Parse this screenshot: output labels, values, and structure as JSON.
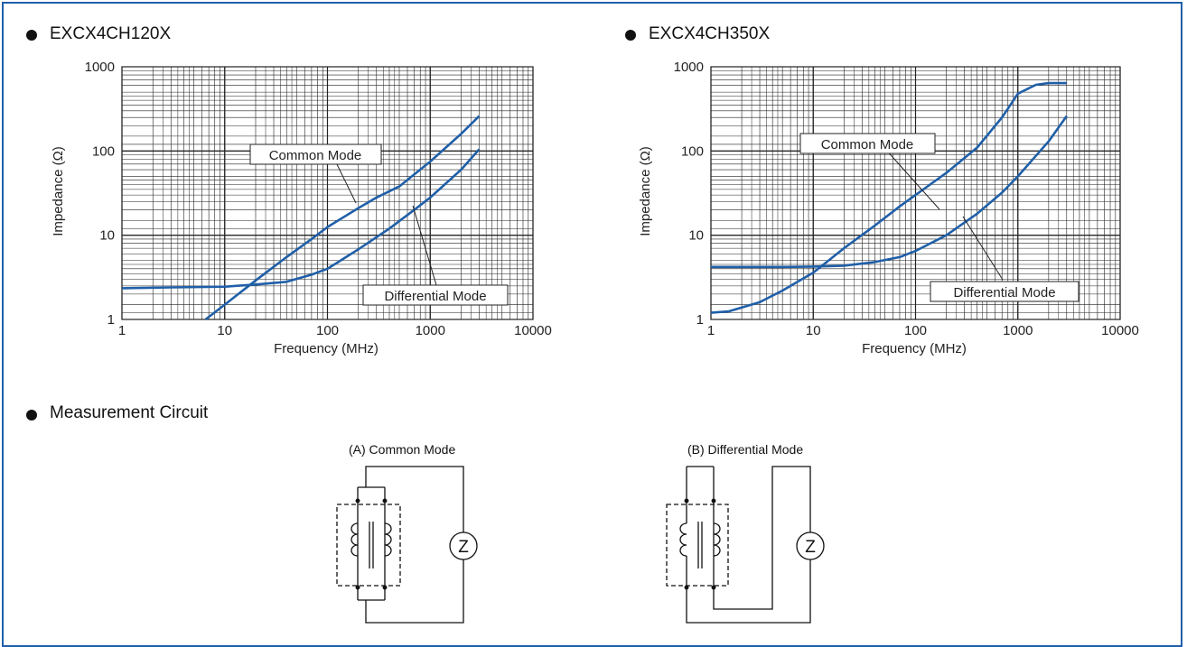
{
  "colors": {
    "curve": "#1f5fa8",
    "frame": "#1f5fa8",
    "grid": "#222222"
  },
  "chart_data": [
    {
      "type": "line",
      "title": "EXCX4CH120X",
      "xlabel": "Frequency (MHz)",
      "ylabel": "Impedance (Ω)",
      "xscale": "log",
      "yscale": "log",
      "xlim": [
        1,
        10000
      ],
      "ylim": [
        1,
        1000
      ],
      "xticks": [
        "1",
        "10",
        "100",
        "1000",
        "10000"
      ],
      "yticks": [
        "1",
        "10",
        "100",
        "1000"
      ],
      "grid": true,
      "series": [
        {
          "name": "Common Mode",
          "x": [
            6.5,
            10,
            20,
            40,
            70,
            100,
            200,
            300,
            500,
            1000,
            2000,
            3000
          ],
          "y": [
            1.0,
            1.5,
            2.9,
            5.5,
            9.0,
            12.5,
            21,
            28,
            38,
            75,
            160,
            260
          ]
        },
        {
          "name": "Differential Mode",
          "x": [
            1,
            3,
            10,
            20,
            40,
            70,
            100,
            200,
            400,
            700,
            1000,
            2000,
            3000
          ],
          "y": [
            2.35,
            2.4,
            2.45,
            2.6,
            2.8,
            3.4,
            4.0,
            6.8,
            12,
            20,
            28,
            60,
            105
          ]
        }
      ]
    },
    {
      "type": "line",
      "title": "EXCX4CH350X",
      "xlabel": "Frequency (MHz)",
      "ylabel": "Impedance (Ω)",
      "xscale": "log",
      "yscale": "log",
      "xlim": [
        1,
        10000
      ],
      "ylim": [
        1,
        1000
      ],
      "xticks": [
        "1",
        "10",
        "100",
        "1000",
        "10000"
      ],
      "yticks": [
        "1",
        "10",
        "100",
        "1000"
      ],
      "grid": true,
      "series": [
        {
          "name": "Common Mode",
          "x": [
            1,
            1.5,
            3,
            5,
            10,
            20,
            40,
            70,
            100,
            200,
            400,
            700,
            1000,
            1500,
            2000,
            3000
          ],
          "y": [
            1.2,
            1.25,
            1.6,
            2.2,
            3.6,
            7,
            13,
            22,
            30,
            55,
            110,
            250,
            480,
            610,
            640,
            640
          ]
        },
        {
          "name": "Differential Mode",
          "x": [
            1,
            5,
            10,
            20,
            40,
            70,
            100,
            200,
            400,
            700,
            1000,
            2000,
            3000
          ],
          "y": [
            4.2,
            4.2,
            4.25,
            4.35,
            4.8,
            5.5,
            6.5,
            10,
            18,
            32,
            50,
            130,
            260
          ]
        }
      ]
    }
  ],
  "charts": [
    {
      "title": "EXCX4CH120X",
      "callouts": {
        "common": "Common Mode",
        "differential": "Differential Mode"
      }
    },
    {
      "title": "EXCX4CH350X",
      "callouts": {
        "common": "Common Mode",
        "differential": "Differential Mode"
      }
    }
  ],
  "circuit": {
    "title": "Measurement Circuit",
    "a_label": "(A) Common Mode",
    "b_label": "(B) Differential Mode",
    "z_symbol": "Z"
  }
}
